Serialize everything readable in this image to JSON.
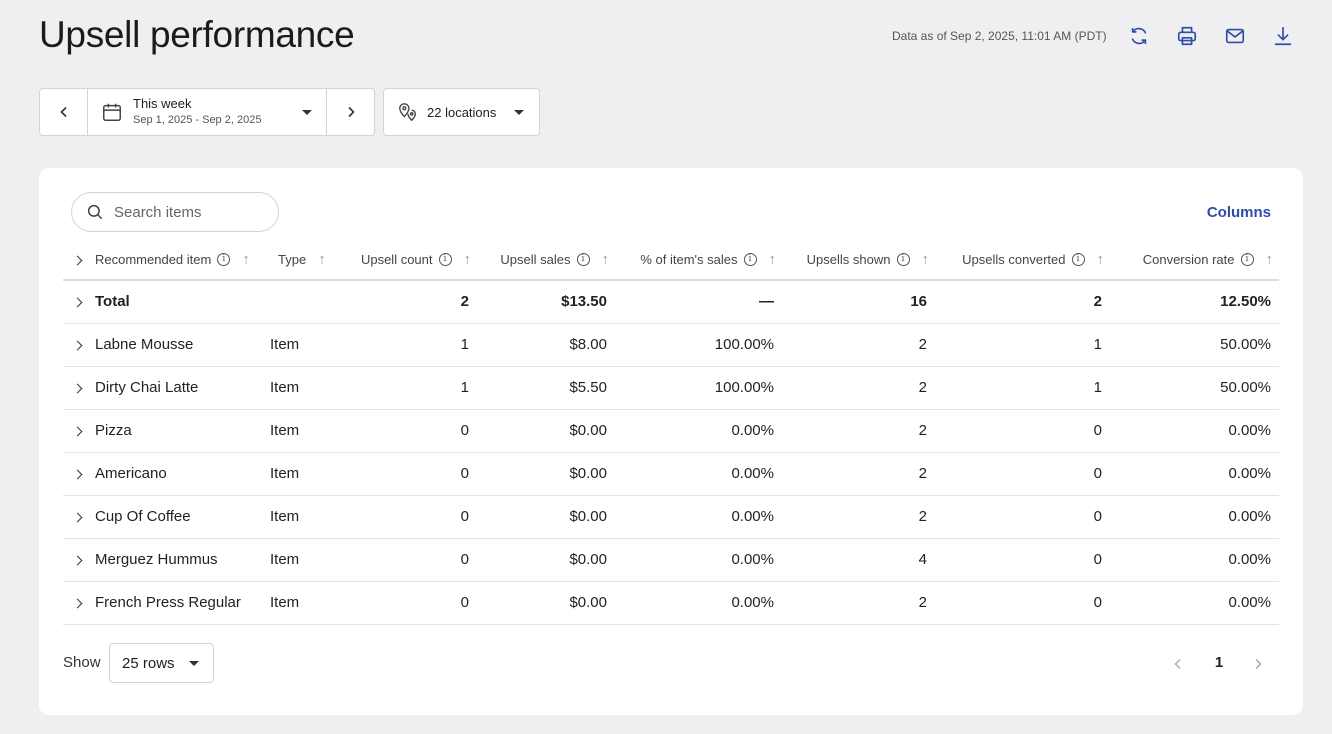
{
  "header": {
    "title": "Upsell performance",
    "data_as_of": "Data as of Sep 2, 2025, 11:01 AM (PDT)",
    "icons": [
      "refresh-icon",
      "print-icon",
      "email-icon",
      "download-icon"
    ]
  },
  "filters": {
    "date_label": "This week",
    "date_range": "Sep 1, 2025 - Sep 2, 2025",
    "locations": "22 locations"
  },
  "table": {
    "search_placeholder": "Search items",
    "columns_button": "Columns",
    "headers": {
      "recommended_item": "Recommended item",
      "type": "Type",
      "upsell_count": "Upsell count",
      "upsell_sales": "Upsell sales",
      "pct_item_sales": "% of item's sales",
      "upsells_shown": "Upsells shown",
      "upsells_converted": "Upsells converted",
      "conversion_rate": "Conversion rate"
    },
    "total": {
      "name": "Total",
      "type": "",
      "count": "2",
      "sales": "$13.50",
      "pct": "—",
      "shown": "16",
      "converted": "2",
      "rate": "12.50%"
    },
    "rows": [
      {
        "name": "Labne Mousse",
        "type": "Item",
        "count": "1",
        "sales": "$8.00",
        "pct": "100.00%",
        "shown": "2",
        "converted": "1",
        "rate": "50.00%"
      },
      {
        "name": "Dirty Chai Latte",
        "type": "Item",
        "count": "1",
        "sales": "$5.50",
        "pct": "100.00%",
        "shown": "2",
        "converted": "1",
        "rate": "50.00%"
      },
      {
        "name": "Pizza",
        "type": "Item",
        "count": "0",
        "sales": "$0.00",
        "pct": "0.00%",
        "shown": "2",
        "converted": "0",
        "rate": "0.00%"
      },
      {
        "name": "Americano",
        "type": "Item",
        "count": "0",
        "sales": "$0.00",
        "pct": "0.00%",
        "shown": "2",
        "converted": "0",
        "rate": "0.00%"
      },
      {
        "name": "Cup Of Coffee",
        "type": "Item",
        "count": "0",
        "sales": "$0.00",
        "pct": "0.00%",
        "shown": "2",
        "converted": "0",
        "rate": "0.00%"
      },
      {
        "name": "Merguez Hummus",
        "type": "Item",
        "count": "0",
        "sales": "$0.00",
        "pct": "0.00%",
        "shown": "4",
        "converted": "0",
        "rate": "0.00%"
      },
      {
        "name": "French Press Regular",
        "type": "Item",
        "count": "0",
        "sales": "$0.00",
        "pct": "0.00%",
        "shown": "2",
        "converted": "0",
        "rate": "0.00%"
      }
    ]
  },
  "footer": {
    "show_label": "Show",
    "rows_per_page": "25 rows",
    "current_page": "1"
  },
  "colors": {
    "accent": "#2f4da8",
    "background": "#efeff2"
  }
}
